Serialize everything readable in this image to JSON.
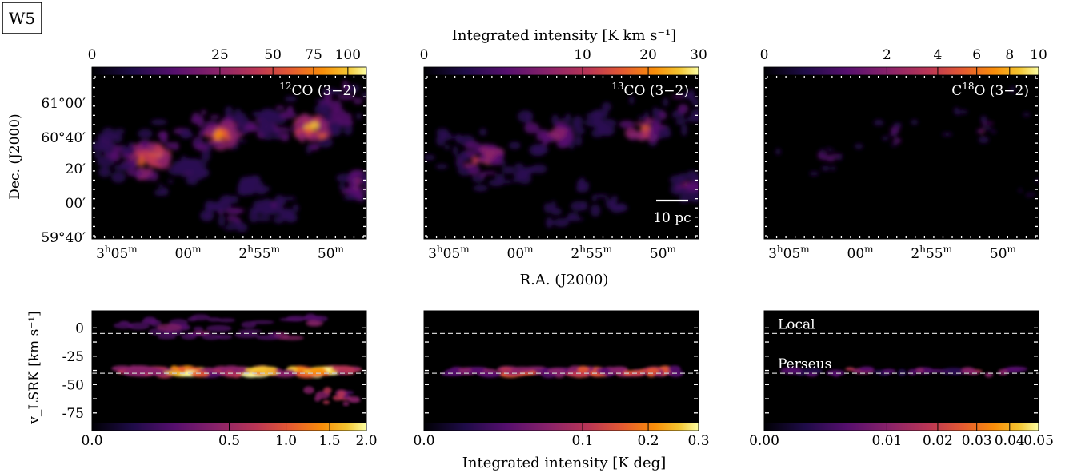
{
  "figure": {
    "region_label": "W5",
    "top_colorbar_label": "Integrated intensity [K km s⁻¹]",
    "bottom_colorbar_label": "Integrated intensity [K deg]",
    "ra_label": "R.A. (J2000)",
    "dec_label": "Dec. (J2000)",
    "v_label": "v_LSRK  [km s⁻¹]",
    "scale_bar_label": "10 pc",
    "colormap": "inferno",
    "colors": {
      "background": "#000000",
      "dashed_line": "#cfcfcf"
    },
    "lines": [
      {
        "name": "Local",
        "v": -5
      },
      {
        "name": "Perseus",
        "v": -40
      }
    ]
  },
  "chart_data": [
    {
      "type": "heatmap",
      "id": "co12-map",
      "label": "¹²CO (3−2)",
      "x_ticks": [
        "3h05m",
        "00m",
        "2h55m",
        "50m"
      ],
      "y_ticks": [
        "61°00′",
        "60°40′",
        "20′",
        "00′",
        "59°40′"
      ],
      "colorbar": {
        "ticks": [
          0,
          25,
          50,
          75,
          100
        ],
        "range": [
          0,
          115
        ],
        "scale": "sqrt",
        "unit": "K km s⁻¹"
      }
    },
    {
      "type": "heatmap",
      "id": "co13-map",
      "label": "¹³CO (3−2)",
      "x_ticks": [
        "3h05m",
        "00m",
        "2h55m",
        "50m"
      ],
      "colorbar": {
        "ticks": [
          0,
          10,
          20,
          30
        ],
        "range": [
          0,
          30
        ],
        "scale": "sqrt",
        "unit": "K km s⁻¹"
      }
    },
    {
      "type": "heatmap",
      "id": "c18o-map",
      "label": "C¹⁸O (3−2)",
      "x_ticks": [
        "3h05m",
        "00m",
        "2h55m",
        "50m"
      ],
      "colorbar": {
        "ticks": [
          0,
          2,
          4,
          6,
          8,
          10
        ],
        "range": [
          0,
          10
        ],
        "scale": "sqrt",
        "unit": "K km s⁻¹"
      }
    },
    {
      "type": "heatmap",
      "id": "co12-lv",
      "y_ticks": [
        0,
        -25,
        -50,
        -75
      ],
      "y_range": [
        15,
        -85
      ],
      "colorbar": {
        "ticks": [
          "0.0",
          "0.5",
          "1.0",
          "1.5",
          "2.0"
        ],
        "range": [
          0,
          2
        ],
        "scale": "sqrt",
        "unit": "K deg"
      }
    },
    {
      "type": "heatmap",
      "id": "co13-lv",
      "y_range": [
        15,
        -85
      ],
      "colorbar": {
        "ticks": [
          "0.0",
          "0.1",
          "0.2",
          "0.3"
        ],
        "range": [
          0,
          0.3
        ],
        "scale": "sqrt",
        "unit": "K deg"
      }
    },
    {
      "type": "heatmap",
      "id": "c18o-lv",
      "y_range": [
        15,
        -85
      ],
      "colorbar": {
        "ticks": [
          "0.00",
          "0.01",
          "0.02",
          "0.03",
          "0.04",
          "0.05"
        ],
        "range": [
          0,
          0.05
        ],
        "scale": "sqrt",
        "unit": "K deg"
      }
    }
  ]
}
